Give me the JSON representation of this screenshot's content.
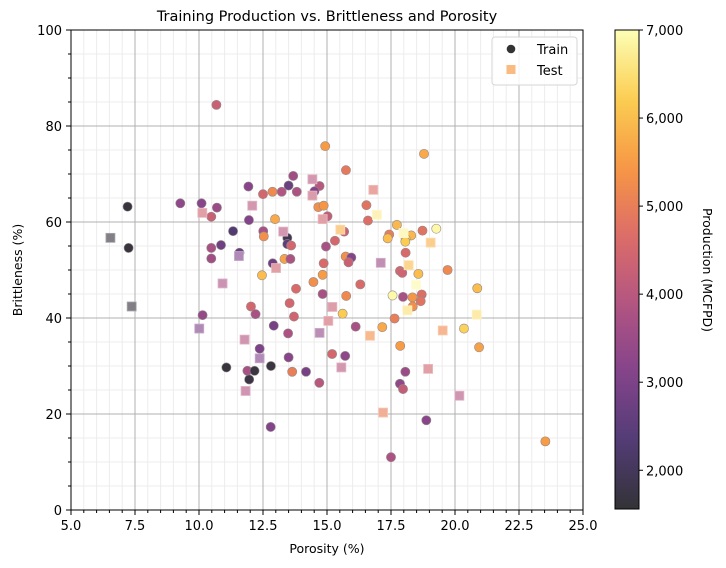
{
  "chart_data": {
    "type": "scatter",
    "title": "Training Production vs. Brittleness and Porosity",
    "xlabel": "Porosity (%)",
    "ylabel": "Brittleness (%)",
    "xlim": [
      5.0,
      25.0
    ],
    "ylim": [
      0,
      100
    ],
    "xticks": [
      5.0,
      7.5,
      10.0,
      12.5,
      15.0,
      17.5,
      20.0,
      22.5,
      25.0
    ],
    "xtick_labels": [
      "5.0",
      "7.5",
      "10.0",
      "12.5",
      "15.0",
      "17.5",
      "20.0",
      "22.5",
      "25.0"
    ],
    "yticks": [
      0,
      20,
      40,
      60,
      80,
      100
    ],
    "ytick_labels": [
      "0",
      "20",
      "40",
      "60",
      "80",
      "100"
    ],
    "x_minor_step": 0.5,
    "y_minor_step": 5,
    "grid": true,
    "colormap": "inferno",
    "colorbar": {
      "label": "Production (MCFPD)",
      "range": [
        1560,
        7000
      ],
      "ticks": [
        2000,
        3000,
        4000,
        5000,
        6000,
        7000
      ],
      "tick_labels": [
        "2,000",
        "3,000",
        "4,000",
        "5,000",
        "6,000",
        "7,000"
      ]
    },
    "legend": {
      "position": "top-right",
      "entries": [
        {
          "label": "Train",
          "marker": "circle",
          "color": "#333333"
        },
        {
          "label": "Test",
          "marker": "square",
          "color": "#f9bb82"
        }
      ]
    },
    "series": [
      {
        "name": "Train",
        "marker": "circle",
        "points": [
          {
            "x": 7.21,
            "y": 63.2,
            "c": 1650
          },
          {
            "x": 7.25,
            "y": 54.6,
            "c": 1650
          },
          {
            "x": 9.27,
            "y": 63.9,
            "c": 3300
          },
          {
            "x": 10.1,
            "y": 63.9,
            "c": 3200
          },
          {
            "x": 10.7,
            "y": 63.0,
            "c": 3500
          },
          {
            "x": 10.48,
            "y": 61.1,
            "c": 4300
          },
          {
            "x": 11.33,
            "y": 58.1,
            "c": 2300
          },
          {
            "x": 10.48,
            "y": 54.6,
            "c": 3700
          },
          {
            "x": 10.86,
            "y": 55.2,
            "c": 2800
          },
          {
            "x": 11.58,
            "y": 53.6,
            "c": 2700
          },
          {
            "x": 10.48,
            "y": 52.4,
            "c": 3600
          },
          {
            "x": 10.14,
            "y": 40.6,
            "c": 3400
          },
          {
            "x": 10.68,
            "y": 84.4,
            "c": 4300
          },
          {
            "x": 14.93,
            "y": 75.8,
            "c": 5500
          },
          {
            "x": 15.74,
            "y": 70.8,
            "c": 4900
          },
          {
            "x": 13.68,
            "y": 69.6,
            "c": 3600
          },
          {
            "x": 11.93,
            "y": 67.4,
            "c": 3200
          },
          {
            "x": 13.5,
            "y": 67.6,
            "c": 2700
          },
          {
            "x": 14.71,
            "y": 67.5,
            "c": 4000
          },
          {
            "x": 12.5,
            "y": 65.8,
            "c": 4500
          },
          {
            "x": 12.87,
            "y": 66.3,
            "c": 5200
          },
          {
            "x": 13.23,
            "y": 66.3,
            "c": 3900
          },
          {
            "x": 13.82,
            "y": 66.3,
            "c": 3800
          },
          {
            "x": 14.51,
            "y": 66.4,
            "c": 3100
          },
          {
            "x": 14.66,
            "y": 63.1,
            "c": 5300
          },
          {
            "x": 14.87,
            "y": 63.4,
            "c": 5400
          },
          {
            "x": 15.02,
            "y": 61.2,
            "c": 4200
          },
          {
            "x": 11.95,
            "y": 60.4,
            "c": 3100
          },
          {
            "x": 12.97,
            "y": 60.6,
            "c": 5700
          },
          {
            "x": 12.51,
            "y": 58.1,
            "c": 3700
          },
          {
            "x": 12.53,
            "y": 57.0,
            "c": 5300
          },
          {
            "x": 13.45,
            "y": 56.7,
            "c": 1900
          },
          {
            "x": 13.45,
            "y": 55.4,
            "c": 2500
          },
          {
            "x": 13.6,
            "y": 55.1,
            "c": 4500
          },
          {
            "x": 14.96,
            "y": 54.9,
            "c": 3700
          },
          {
            "x": 15.31,
            "y": 56.1,
            "c": 4500
          },
          {
            "x": 15.67,
            "y": 58.0,
            "c": 4300
          },
          {
            "x": 15.73,
            "y": 52.8,
            "c": 5300
          },
          {
            "x": 15.95,
            "y": 52.6,
            "c": 3100
          },
          {
            "x": 15.84,
            "y": 51.6,
            "c": 4300
          },
          {
            "x": 12.88,
            "y": 51.4,
            "c": 2800
          },
          {
            "x": 13.34,
            "y": 52.3,
            "c": 5600
          },
          {
            "x": 13.57,
            "y": 52.3,
            "c": 3800
          },
          {
            "x": 14.87,
            "y": 51.4,
            "c": 4600
          },
          {
            "x": 12.46,
            "y": 48.9,
            "c": 6000
          },
          {
            "x": 14.83,
            "y": 49.0,
            "c": 5500
          },
          {
            "x": 14.47,
            "y": 47.5,
            "c": 5300
          },
          {
            "x": 13.79,
            "y": 46.1,
            "c": 4600
          },
          {
            "x": 14.83,
            "y": 45.0,
            "c": 3700
          },
          {
            "x": 15.75,
            "y": 44.6,
            "c": 5200
          },
          {
            "x": 16.3,
            "y": 47.0,
            "c": 4600
          },
          {
            "x": 13.54,
            "y": 43.1,
            "c": 4500
          },
          {
            "x": 12.03,
            "y": 42.4,
            "c": 4500
          },
          {
            "x": 12.21,
            "y": 40.8,
            "c": 3700
          },
          {
            "x": 13.71,
            "y": 40.3,
            "c": 4400
          },
          {
            "x": 15.61,
            "y": 40.9,
            "c": 6200
          },
          {
            "x": 12.92,
            "y": 38.4,
            "c": 2900
          },
          {
            "x": 13.48,
            "y": 36.8,
            "c": 3800
          },
          {
            "x": 16.12,
            "y": 38.2,
            "c": 3700
          },
          {
            "x": 12.37,
            "y": 33.6,
            "c": 3000
          },
          {
            "x": 13.5,
            "y": 31.8,
            "c": 3200
          },
          {
            "x": 15.2,
            "y": 32.5,
            "c": 4500
          },
          {
            "x": 15.71,
            "y": 32.1,
            "c": 3300
          },
          {
            "x": 12.81,
            "y": 30.0,
            "c": 1700
          },
          {
            "x": 11.07,
            "y": 29.7,
            "c": 1650
          },
          {
            "x": 11.89,
            "y": 29.0,
            "c": 3700
          },
          {
            "x": 12.17,
            "y": 29.0,
            "c": 1700
          },
          {
            "x": 11.96,
            "y": 27.2,
            "c": 1750
          },
          {
            "x": 13.64,
            "y": 28.8,
            "c": 5000
          },
          {
            "x": 14.18,
            "y": 28.8,
            "c": 2900
          },
          {
            "x": 14.7,
            "y": 26.5,
            "c": 4000
          },
          {
            "x": 12.8,
            "y": 17.3,
            "c": 3100
          },
          {
            "x": 18.79,
            "y": 74.2,
            "c": 5700
          },
          {
            "x": 16.54,
            "y": 63.5,
            "c": 4800
          },
          {
            "x": 16.6,
            "y": 60.3,
            "c": 4700
          },
          {
            "x": 17.73,
            "y": 59.4,
            "c": 5900
          },
          {
            "x": 17.43,
            "y": 57.4,
            "c": 5000
          },
          {
            "x": 17.37,
            "y": 56.6,
            "c": 6000
          },
          {
            "x": 18.29,
            "y": 57.2,
            "c": 5900
          },
          {
            "x": 18.07,
            "y": 56.5,
            "c": 6300
          },
          {
            "x": 18.06,
            "y": 55.9,
            "c": 6200
          },
          {
            "x": 18.73,
            "y": 58.2,
            "c": 4800
          },
          {
            "x": 19.27,
            "y": 58.6,
            "c": 6900
          },
          {
            "x": 18.07,
            "y": 53.6,
            "c": 4600
          },
          {
            "x": 17.85,
            "y": 49.8,
            "c": 4500
          },
          {
            "x": 17.94,
            "y": 49.4,
            "c": 4400
          },
          {
            "x": 18.57,
            "y": 49.2,
            "c": 6000
          },
          {
            "x": 19.71,
            "y": 50.0,
            "c": 5200
          },
          {
            "x": 17.56,
            "y": 44.7,
            "c": 6900
          },
          {
            "x": 17.97,
            "y": 44.4,
            "c": 3700
          },
          {
            "x": 18.34,
            "y": 44.3,
            "c": 5400
          },
          {
            "x": 18.7,
            "y": 44.9,
            "c": 4700
          },
          {
            "x": 18.66,
            "y": 43.5,
            "c": 4800
          },
          {
            "x": 18.35,
            "y": 42.4,
            "c": 5300
          },
          {
            "x": 20.87,
            "y": 46.2,
            "c": 6000
          },
          {
            "x": 17.64,
            "y": 39.9,
            "c": 5000
          },
          {
            "x": 17.16,
            "y": 38.1,
            "c": 5700
          },
          {
            "x": 20.35,
            "y": 37.8,
            "c": 6300
          },
          {
            "x": 17.86,
            "y": 34.2,
            "c": 5500
          },
          {
            "x": 20.94,
            "y": 33.9,
            "c": 5600
          },
          {
            "x": 18.06,
            "y": 28.8,
            "c": 3500
          },
          {
            "x": 17.85,
            "y": 26.3,
            "c": 3300
          },
          {
            "x": 17.97,
            "y": 25.2,
            "c": 4200
          },
          {
            "x": 18.88,
            "y": 18.7,
            "c": 3200
          },
          {
            "x": 23.53,
            "y": 14.3,
            "c": 5500
          },
          {
            "x": 17.5,
            "y": 11.0,
            "c": 3800
          }
        ]
      },
      {
        "name": "Test",
        "marker": "square",
        "points": [
          {
            "x": 6.54,
            "y": 56.7,
            "c": 1650
          },
          {
            "x": 7.37,
            "y": 42.4,
            "c": 1650
          },
          {
            "x": 10.13,
            "y": 61.9,
            "c": 4400
          },
          {
            "x": 11.56,
            "y": 52.9,
            "c": 3100
          },
          {
            "x": 10.92,
            "y": 47.2,
            "c": 3800
          },
          {
            "x": 10.01,
            "y": 37.8,
            "c": 3000
          },
          {
            "x": 14.43,
            "y": 68.9,
            "c": 4000
          },
          {
            "x": 14.43,
            "y": 65.5,
            "c": 4200
          },
          {
            "x": 12.08,
            "y": 63.4,
            "c": 4000
          },
          {
            "x": 14.83,
            "y": 60.6,
            "c": 4400
          },
          {
            "x": 13.29,
            "y": 58.0,
            "c": 4000
          },
          {
            "x": 15.52,
            "y": 58.4,
            "c": 5800
          },
          {
            "x": 13.01,
            "y": 50.4,
            "c": 4400
          },
          {
            "x": 15.21,
            "y": 42.3,
            "c": 4300
          },
          {
            "x": 15.05,
            "y": 39.4,
            "c": 4400
          },
          {
            "x": 14.71,
            "y": 36.9,
            "c": 3400
          },
          {
            "x": 16.68,
            "y": 36.3,
            "c": 5300
          },
          {
            "x": 11.78,
            "y": 35.5,
            "c": 3900
          },
          {
            "x": 12.37,
            "y": 31.6,
            "c": 3100
          },
          {
            "x": 15.56,
            "y": 29.7,
            "c": 4000
          },
          {
            "x": 11.82,
            "y": 24.8,
            "c": 3900
          },
          {
            "x": 16.81,
            "y": 66.7,
            "c": 4700
          },
          {
            "x": 16.95,
            "y": 61.5,
            "c": 6700
          },
          {
            "x": 17.99,
            "y": 57.7,
            "c": 6800
          },
          {
            "x": 19.05,
            "y": 55.7,
            "c": 5800
          },
          {
            "x": 17.1,
            "y": 51.5,
            "c": 3500
          },
          {
            "x": 18.19,
            "y": 51.0,
            "c": 6000
          },
          {
            "x": 18.48,
            "y": 46.9,
            "c": 6900
          },
          {
            "x": 18.14,
            "y": 41.6,
            "c": 6500
          },
          {
            "x": 20.85,
            "y": 40.7,
            "c": 6500
          },
          {
            "x": 19.52,
            "y": 37.4,
            "c": 5200
          },
          {
            "x": 18.95,
            "y": 29.4,
            "c": 4400
          },
          {
            "x": 20.17,
            "y": 23.8,
            "c": 3900
          },
          {
            "x": 17.19,
            "y": 20.3,
            "c": 5000
          }
        ]
      }
    ]
  }
}
